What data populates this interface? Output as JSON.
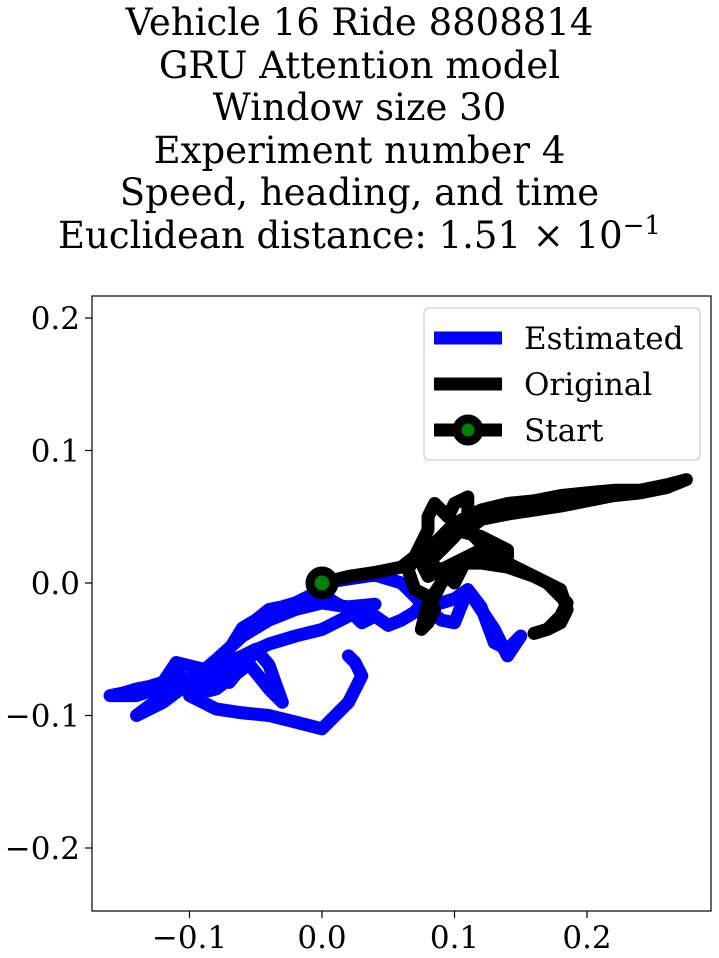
{
  "chart_data": {
    "type": "line",
    "title_lines": [
      "Vehicle 16 Ride 8808814",
      "GRU Attention model",
      "Window size 30",
      "Experiment number 4",
      "Speed, heading, and time"
    ],
    "title_last_prefix": "Euclidean distance: 1.51 × 10",
    "title_last_exponent": "−1",
    "xlabel": "",
    "ylabel": "",
    "xlim": [
      -0.175,
      0.295
    ],
    "ylim": [
      -0.248,
      0.218
    ],
    "xticks": [
      -0.1,
      0.0,
      0.1,
      0.2
    ],
    "xtick_labels": [
      "−0.1",
      "0.0",
      "0.1",
      "0.2"
    ],
    "yticks": [
      0.2,
      0.1,
      0.0,
      -0.1,
      -0.2
    ],
    "ytick_labels": [
      "0.2",
      "0.1",
      "0.0",
      "−0.1",
      "−0.2"
    ],
    "grid": false,
    "legend_position": "upper right",
    "colors": {
      "estimated": "#0000ff",
      "original": "#000000",
      "start_fill": "#008000"
    },
    "series": [
      {
        "name": "Estimated",
        "color": "#0000ff",
        "x": [
          0.0,
          0.02,
          0.04,
          0.06,
          0.07,
          0.08,
          0.09,
          0.1,
          0.11,
          0.12,
          0.13,
          0.14,
          0.15,
          0.14,
          0.13,
          0.12,
          0.11,
          0.1,
          0.09,
          0.08,
          0.07,
          0.06,
          0.05,
          0.04,
          0.03,
          0.02,
          0.01,
          0.0,
          -0.01,
          -0.02,
          -0.03,
          -0.04,
          -0.05,
          -0.06,
          -0.07,
          -0.08,
          -0.09,
          -0.1,
          -0.11,
          -0.12,
          -0.13,
          -0.14,
          -0.15,
          -0.16,
          -0.14,
          -0.12,
          -0.1,
          -0.08,
          -0.06,
          -0.04,
          -0.03,
          -0.04,
          -0.05,
          -0.07,
          -0.09,
          -0.11,
          -0.12,
          -0.1,
          -0.08,
          -0.06,
          -0.04,
          -0.02,
          0.0,
          0.02,
          0.04,
          0.02,
          0.0,
          -0.02,
          -0.04,
          -0.06,
          -0.08,
          -0.1,
          -0.12,
          -0.14,
          -0.12,
          -0.1,
          -0.08,
          -0.06,
          -0.05,
          -0.06,
          -0.08,
          -0.1,
          -0.08,
          -0.06,
          -0.04,
          -0.02,
          0.0,
          0.02,
          0.03,
          0.025,
          0.02
        ],
        "y": [
          0.0,
          0.003,
          0.006,
          0.0,
          -0.01,
          -0.02,
          -0.028,
          -0.03,
          -0.005,
          -0.018,
          -0.045,
          -0.05,
          -0.04,
          -0.055,
          -0.035,
          -0.02,
          -0.005,
          -0.012,
          -0.015,
          -0.01,
          -0.022,
          -0.028,
          -0.032,
          -0.025,
          -0.03,
          -0.02,
          -0.015,
          -0.008,
          -0.01,
          -0.015,
          -0.018,
          -0.02,
          -0.028,
          -0.034,
          -0.05,
          -0.07,
          -0.075,
          -0.075,
          -0.068,
          -0.075,
          -0.078,
          -0.08,
          -0.083,
          -0.085,
          -0.085,
          -0.078,
          -0.072,
          -0.065,
          -0.055,
          -0.08,
          -0.09,
          -0.062,
          -0.05,
          -0.075,
          -0.065,
          -0.06,
          -0.075,
          -0.072,
          -0.064,
          -0.055,
          -0.046,
          -0.04,
          -0.035,
          -0.025,
          -0.016,
          -0.018,
          -0.015,
          -0.02,
          -0.028,
          -0.04,
          -0.058,
          -0.075,
          -0.085,
          -0.1,
          -0.09,
          -0.075,
          -0.07,
          -0.055,
          -0.05,
          -0.065,
          -0.08,
          -0.085,
          -0.095,
          -0.098,
          -0.1,
          -0.105,
          -0.11,
          -0.09,
          -0.07,
          -0.06,
          -0.055
        ]
      },
      {
        "name": "Original",
        "color": "#000000",
        "x": [
          0.0,
          0.02,
          0.04,
          0.06,
          0.07,
          0.075,
          0.08,
          0.08,
          0.085,
          0.09,
          0.095,
          0.1,
          0.11,
          0.11,
          0.1,
          0.09,
          0.085,
          0.09,
          0.1,
          0.11,
          0.12,
          0.14,
          0.16,
          0.18,
          0.2,
          0.22,
          0.24,
          0.26,
          0.275,
          0.26,
          0.24,
          0.22,
          0.2,
          0.18,
          0.16,
          0.14,
          0.12,
          0.11,
          0.12,
          0.14,
          0.14,
          0.12,
          0.1,
          0.09,
          0.08,
          0.075,
          0.08,
          0.09,
          0.1,
          0.12,
          0.14,
          0.16,
          0.18,
          0.185,
          0.18,
          0.17,
          0.16,
          0.17,
          0.18,
          0.185,
          0.17,
          0.15,
          0.13,
          0.12,
          0.11,
          0.105,
          0.1,
          0.09,
          0.08,
          0.07,
          0.065,
          0.07,
          0.08,
          0.085,
          0.08,
          0.075,
          0.08,
          0.09,
          0.1,
          0.11,
          0.12,
          0.12,
          0.11,
          0.1,
          0.09,
          0.08,
          0.078
        ],
        "y": [
          0.0,
          0.005,
          0.008,
          0.012,
          0.02,
          0.03,
          0.04,
          0.05,
          0.06,
          0.055,
          0.05,
          0.06,
          0.065,
          0.05,
          0.035,
          0.025,
          0.02,
          0.035,
          0.045,
          0.05,
          0.055,
          0.06,
          0.062,
          0.066,
          0.068,
          0.07,
          0.07,
          0.074,
          0.078,
          0.072,
          0.068,
          0.066,
          0.062,
          0.058,
          0.055,
          0.052,
          0.048,
          0.04,
          0.03,
          0.02,
          0.025,
          0.035,
          0.04,
          0.035,
          0.025,
          0.015,
          0.005,
          0.01,
          0.015,
          0.015,
          0.012,
          0.005,
          -0.005,
          -0.02,
          -0.03,
          -0.035,
          -0.038,
          -0.035,
          -0.025,
          -0.015,
          0.0,
          0.01,
          0.02,
          0.025,
          0.02,
          0.01,
          0.0,
          0.01,
          0.015,
          0.02,
          0.01,
          -0.005,
          -0.01,
          -0.02,
          -0.03,
          -0.035,
          -0.015,
          0.0,
          0.015,
          0.02,
          0.025,
          0.015,
          0.02,
          0.01,
          0.0,
          -0.02,
          -0.03
        ]
      }
    ],
    "start_point": {
      "name": "Start",
      "x": 0.0,
      "y": 0.0
    },
    "legend": [
      "Estimated",
      "Original",
      "Start"
    ]
  }
}
